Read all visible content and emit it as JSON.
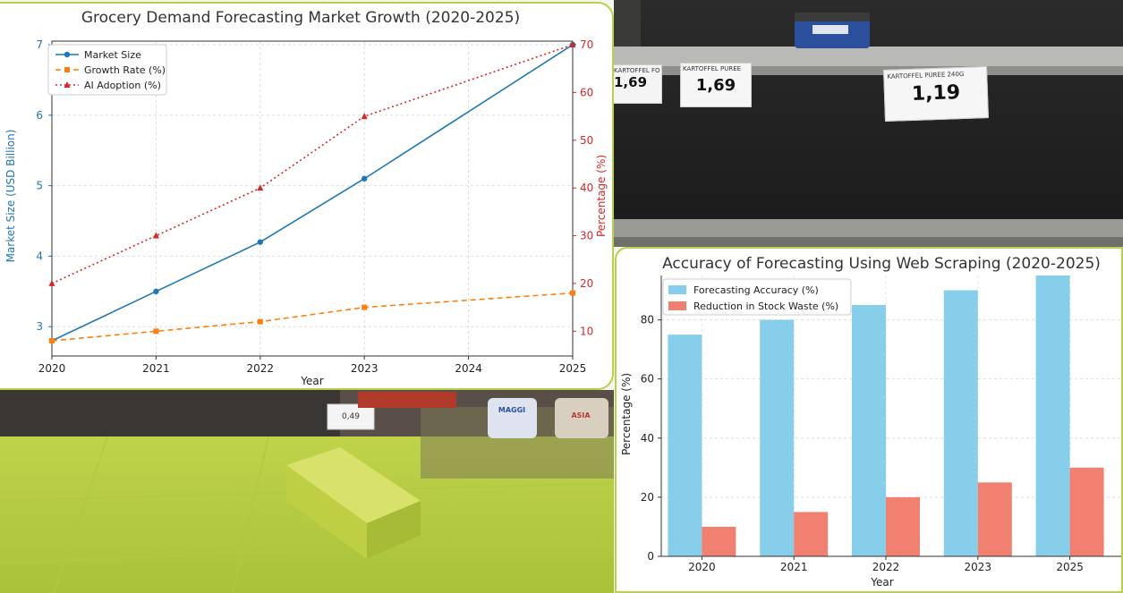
{
  "colors": {
    "market_size": "#1f77b4",
    "growth_rate": "#ff7f0e",
    "ai_adoption": "#d62728",
    "forecast_accuracy": "#87ceeb",
    "stock_waste": "#f08070",
    "panel_border": "#b7d14a",
    "green_overlay": "#c5d93a"
  },
  "photo": {
    "price_tags": [
      {
        "desc": "KARTOFFEL FOOM",
        "price": "1,69"
      },
      {
        "desc": "KARTOFFEL PUREE",
        "price": "1,69"
      },
      {
        "desc": "KARTOFFEL PÜREE 240G",
        "price": "1,19"
      }
    ],
    "floor_tag": "0,49",
    "brand_label": "MAGGI",
    "small_label": "ASIA"
  },
  "chart_data": [
    {
      "type": "line",
      "title": "Grocery Demand Forecasting Market Growth (2020-2025)",
      "xlabel": "Year",
      "ylabel_left": "Market Size (USD Billion)",
      "ylabel_right": "Percentage (%)",
      "x": [
        2020,
        2021,
        2022,
        2023,
        2025
      ],
      "x_ticks": [
        "2020",
        "2021",
        "2022",
        "2023",
        "2024",
        "2025"
      ],
      "xlim": [
        2020,
        2025
      ],
      "ylim_left": [
        2.8,
        7.0
      ],
      "y_ticks_left": [
        "3",
        "4",
        "5",
        "6",
        "7"
      ],
      "ylim_right": [
        8,
        70
      ],
      "y_ticks_right": [
        "10",
        "20",
        "30",
        "40",
        "50",
        "60",
        "70"
      ],
      "grid": true,
      "legend_position": "top-left",
      "series": [
        {
          "name": "Market Size",
          "axis": "left",
          "values": [
            2.8,
            3.5,
            4.2,
            5.1,
            7.0
          ]
        },
        {
          "name": "Growth Rate (%)",
          "axis": "right",
          "values": [
            8,
            10,
            12,
            15,
            18
          ]
        },
        {
          "name": "AI Adoption (%)",
          "axis": "right",
          "values": [
            20,
            30,
            40,
            55,
            70
          ]
        }
      ]
    },
    {
      "type": "bar",
      "title": "Accuracy of Forecasting Using Web Scraping (2020-2025)",
      "xlabel": "Year",
      "ylabel": "Percentage (%)",
      "categories": [
        "2020",
        "2021",
        "2022",
        "2023",
        "2025"
      ],
      "ylim": [
        0,
        95
      ],
      "y_ticks": [
        "0",
        "20",
        "40",
        "60",
        "80"
      ],
      "grid": true,
      "legend_position": "top-left",
      "series": [
        {
          "name": "Forecasting Accuracy (%)",
          "values": [
            75,
            80,
            85,
            90,
            95
          ]
        },
        {
          "name": "Reduction in Stock Waste (%)",
          "values": [
            10,
            15,
            20,
            25,
            30
          ]
        }
      ]
    }
  ]
}
